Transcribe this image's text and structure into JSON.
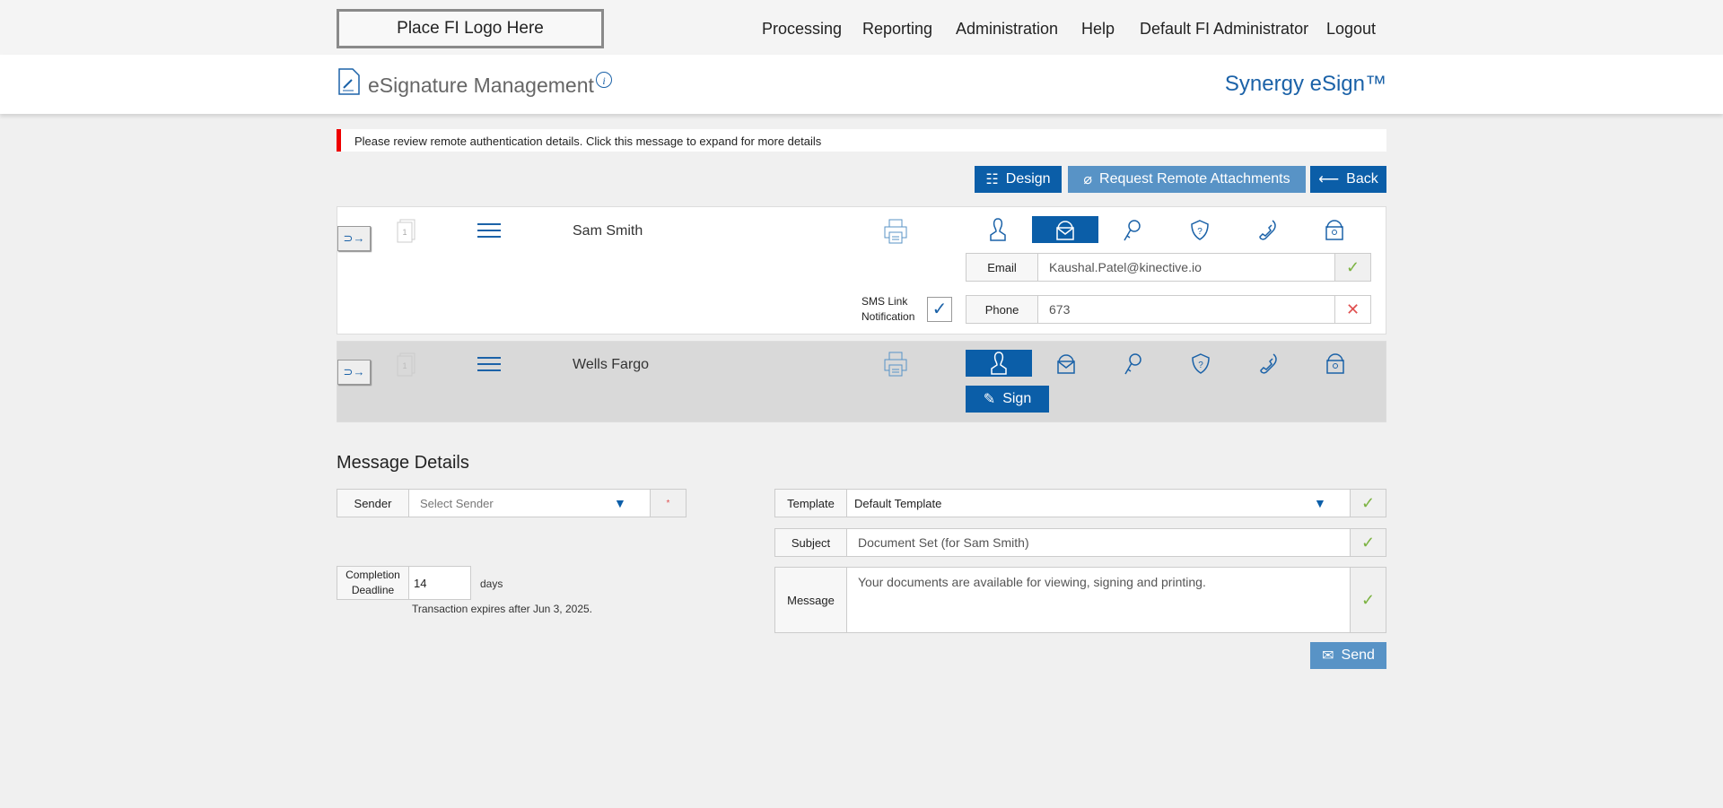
{
  "topbar": {
    "logo": "Place FI Logo Here",
    "nav": [
      "Processing",
      "Reporting",
      "Administration",
      "Help",
      "Default FI Administrator",
      "Logout"
    ]
  },
  "header": {
    "title": "eSignature Management",
    "brand": "Synergy eSign™"
  },
  "alert": "Please review remote authentication details. Click this message to expand for more details",
  "actions": {
    "design": "Design",
    "request": "Request Remote Attachments",
    "back": "Back"
  },
  "signers": [
    {
      "name": "Sam Smith",
      "active_auth": "email",
      "email_label": "Email",
      "email": "Kaushal.Patel@kinective.io",
      "phone_label": "Phone",
      "phone": "673",
      "sms_label": "SMS Link Notification",
      "sms_checked": true
    },
    {
      "name": "Wells Fargo",
      "active_auth": "in-person",
      "sign": "Sign"
    }
  ],
  "message": {
    "heading": "Message Details",
    "sender_label": "Sender",
    "sender_placeholder": "Select Sender",
    "required_mark": "*",
    "completion_label": "Completion Deadline",
    "completion_value": "14",
    "days": "days",
    "expires": "Transaction expires after Jun 3, 2025.",
    "template_label": "Template",
    "template_value": "Default Template",
    "subject_label": "Subject",
    "subject_value": "Document Set (for Sam Smith)",
    "message_label": "Message",
    "message_value": "Your documents are available for viewing, signing and printing.",
    "send": "Send"
  },
  "colors": {
    "accent": "#0b5ea8",
    "alert": "#ee0000",
    "ok": "#7cb342",
    "error": "#e05050"
  }
}
